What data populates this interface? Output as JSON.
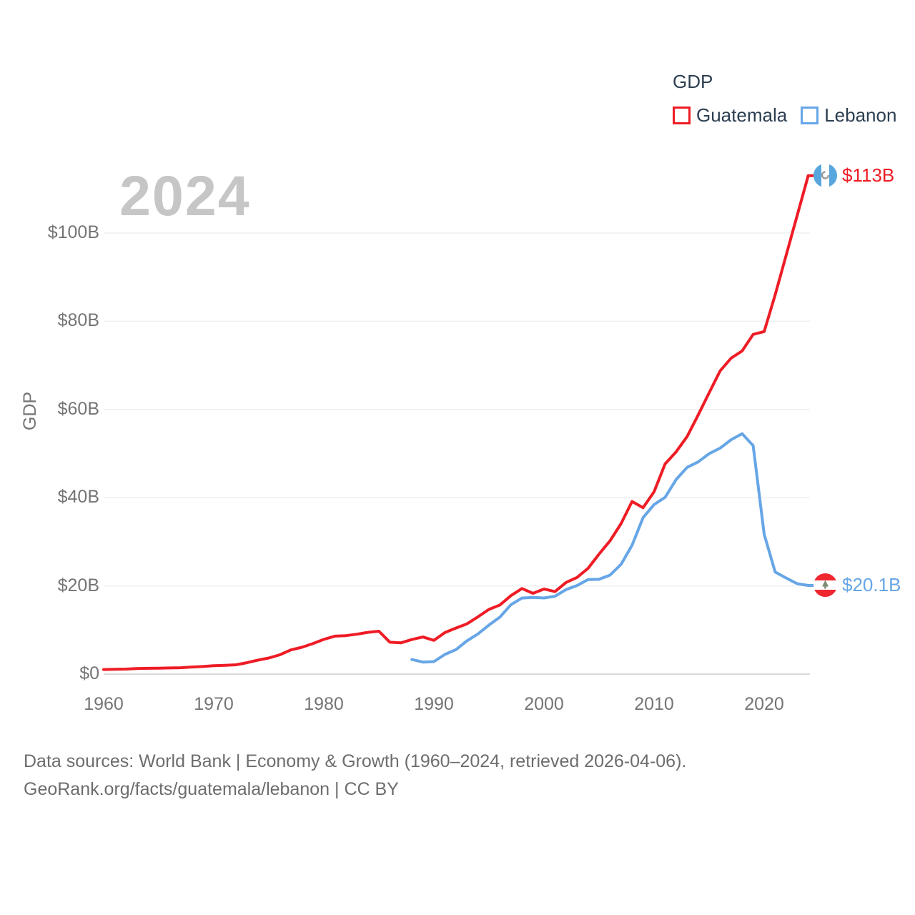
{
  "legend": {
    "title": "GDP",
    "items": [
      {
        "label": "Guatemala",
        "color": "#ee1c25"
      },
      {
        "label": "Lebanon",
        "color": "#66a6e6"
      }
    ]
  },
  "watermark": "2024",
  "axes": {
    "y_title": "GDP",
    "x_ticks": [
      "1960",
      "1970",
      "1980",
      "1990",
      "2000",
      "2010",
      "2020"
    ],
    "y_ticks": [
      {
        "value": 0,
        "label": "$0"
      },
      {
        "value": 20,
        "label": "$20B"
      },
      {
        "value": 40,
        "label": "$40B"
      },
      {
        "value": 60,
        "label": "$60B"
      },
      {
        "value": 80,
        "label": "$80B"
      },
      {
        "value": 100,
        "label": "$100B"
      }
    ]
  },
  "end_labels": [
    {
      "series": "Guatemala",
      "value": "$113B",
      "flag": "guatemala-flag",
      "color": "#ee1c25"
    },
    {
      "series": "Lebanon",
      "value": "$20.1B",
      "flag": "lebanon-flag",
      "color": "#66a6e6"
    }
  ],
  "footer": {
    "line1": "Data sources: World Bank | Economy & Growth (1960–2024, retrieved 2026-04-06).",
    "line2": "GeoRank.org/facts/guatemala/lebanon | CC BY"
  },
  "chart_data": {
    "type": "line",
    "title": "GDP",
    "xlabel": "",
    "ylabel": "GDP",
    "x_range": [
      1960,
      2024
    ],
    "ylim": [
      0,
      113
    ],
    "grid": "horizontal-only",
    "legend_position": "top-right",
    "units": "current US$ billions",
    "series": [
      {
        "name": "Guatemala",
        "color": "#ee1c25",
        "start_year": 1960,
        "end_value_label": "$113B",
        "values": [
          1.04,
          1.08,
          1.14,
          1.24,
          1.31,
          1.33,
          1.39,
          1.45,
          1.61,
          1.72,
          1.9,
          1.98,
          2.1,
          2.57,
          3.16,
          3.65,
          4.37,
          5.48,
          6.07,
          6.9,
          7.88,
          8.61,
          8.72,
          9.05,
          9.47,
          9.72,
          7.23,
          7.08,
          7.84,
          8.41,
          7.65,
          9.41,
          10.44,
          11.4,
          12.98,
          14.66,
          15.67,
          17.79,
          19.4,
          18.32,
          19.29,
          18.7,
          20.78,
          21.92,
          23.97,
          27.21,
          30.23,
          34.11,
          39.14,
          37.73,
          41.34,
          47.65,
          50.39,
          53.85,
          58.72,
          63.77,
          68.76,
          71.64,
          73.28,
          77.02,
          77.67,
          86.0,
          95.0,
          104.0,
          113.0
        ]
      },
      {
        "name": "Lebanon",
        "color": "#66a6e6",
        "start_year": 1988,
        "end_value_label": "$20.1B",
        "values": [
          3.31,
          2.72,
          2.84,
          4.45,
          5.55,
          7.54,
          9.11,
          11.12,
          12.93,
          15.75,
          17.25,
          17.39,
          17.26,
          17.65,
          19.15,
          20.08,
          21.44,
          21.49,
          22.44,
          24.88,
          29.23,
          35.48,
          38.44,
          40.08,
          44.1,
          46.87,
          48.1,
          49.97,
          51.23,
          53.15,
          54.5,
          51.8,
          31.72,
          23.13,
          21.78,
          20.5,
          20.1
        ]
      }
    ]
  }
}
